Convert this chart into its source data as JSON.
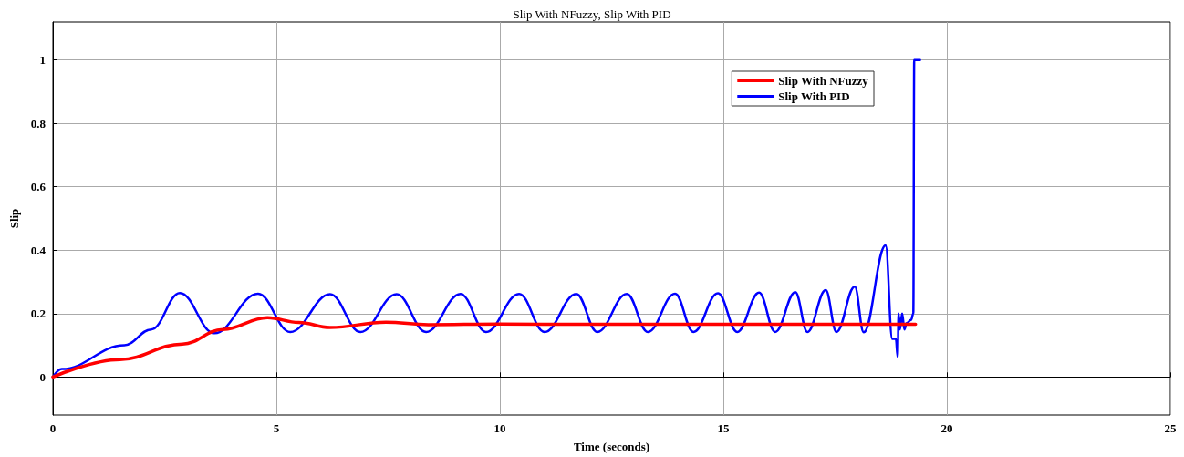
{
  "chart_data": {
    "type": "line",
    "title": "Slip With NFuzzy, Slip With PID",
    "xlabel": "Time (seconds)",
    "ylabel": "Slip",
    "xlim": [
      0,
      25
    ],
    "xticks": [
      0,
      5,
      10,
      15,
      20,
      25
    ],
    "ylim": [
      -0.12,
      1.12
    ],
    "yticks": [
      0,
      0.2,
      0.4,
      0.6,
      0.8,
      1
    ],
    "grid": true,
    "legend": "top right",
    "marker": "none",
    "line_style": "solid",
    "series": [
      {
        "name": "Slip With NFuzzy",
        "color": "#ff0000",
        "x": [
          0,
          1.5,
          2.9,
          3.8,
          4.8,
          5.5,
          6.2,
          7.45,
          8.4,
          10,
          12,
          15,
          17,
          19.3
        ],
        "values": [
          0,
          0.055,
          0.104,
          0.15,
          0.187,
          0.172,
          0.156,
          0.173,
          0.165,
          0.167,
          0.166,
          0.166,
          0.166,
          0.166
        ]
      },
      {
        "name": "Slip With PID",
        "color": "#0000ff",
        "x": [
          0,
          0.2,
          1.6,
          2.2,
          2.84,
          3.61,
          4.59,
          5.31,
          6.2,
          6.88,
          7.69,
          8.35,
          9.12,
          9.69,
          10.43,
          11.0,
          11.71,
          12.18,
          12.84,
          13.31,
          13.92,
          14.33,
          14.88,
          15.31,
          15.8,
          16.16,
          16.61,
          16.88,
          17.29,
          17.53,
          17.94,
          18.14,
          18.63,
          18.78,
          18.86,
          18.9,
          18.92,
          18.95,
          19.0,
          19.05,
          19.1,
          19.2,
          19.25,
          19.27,
          19.4
        ],
        "values": [
          0,
          0.025,
          0.1,
          0.15,
          0.265,
          0.138,
          0.263,
          0.142,
          0.261,
          0.142,
          0.261,
          0.142,
          0.262,
          0.142,
          0.262,
          0.142,
          0.262,
          0.142,
          0.262,
          0.142,
          0.263,
          0.142,
          0.264,
          0.142,
          0.266,
          0.142,
          0.268,
          0.142,
          0.274,
          0.142,
          0.285,
          0.141,
          0.415,
          0.12,
          0.12,
          0.063,
          0.2,
          0.15,
          0.2,
          0.15,
          0.17,
          0.18,
          0.2,
          1,
          1
        ]
      }
    ]
  }
}
